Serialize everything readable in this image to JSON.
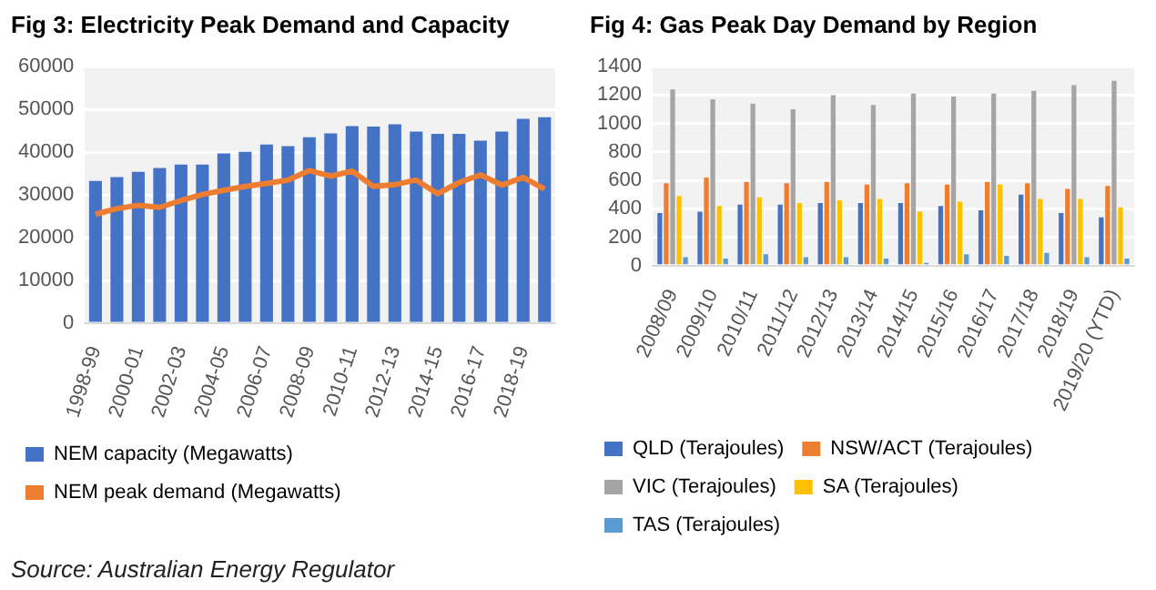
{
  "chart_data": [
    {
      "type": "bar",
      "title": "Fig 3: Electricity Peak Demand and Capacity",
      "categories": [
        "1998-99",
        null,
        "2000-01",
        null,
        "2002-03",
        null,
        "2004-05",
        null,
        "2006-07",
        null,
        "2008-09",
        null,
        "2010-11",
        null,
        "2012-13",
        null,
        "2014-15",
        null,
        "2016-17",
        null,
        "2018-19",
        null
      ],
      "series": [
        {
          "name": "NEM capacity (Megawatts)",
          "color": "#4472c4",
          "values": [
            33300,
            34200,
            35400,
            36300,
            37100,
            37100,
            39700,
            40100,
            41800,
            41400,
            43500,
            44400,
            46100,
            46000,
            46500,
            44800,
            44300,
            44300,
            42700,
            44800,
            47800,
            48200
          ]
        },
        {
          "name": "NEM peak demand (Megawatts)",
          "type": "line",
          "color": "#ed7d31",
          "values": [
            25500,
            26800,
            27600,
            27100,
            28700,
            30100,
            31100,
            32000,
            32700,
            33500,
            35700,
            34400,
            35600,
            32000,
            32400,
            33500,
            30300,
            32900,
            34700,
            32300,
            34100,
            31400
          ]
        }
      ],
      "ylim": [
        0,
        60000
      ],
      "yticks": [
        0,
        10000,
        20000,
        30000,
        40000,
        50000,
        60000
      ],
      "grid": "y",
      "legend": "bottom",
      "marker": "none",
      "annotations": [
        "Source: Australian Energy Regulator"
      ]
    },
    {
      "type": "bar",
      "title": "Fig 4: Gas Peak Day Demand by Region",
      "categories": [
        "2008/09",
        "2009/10",
        "2010/11",
        "2011/12",
        "2012/13",
        "2013/14",
        "2014/15",
        "2015/16",
        "2016/17",
        "2017/18",
        "2018/19",
        "2019/20 (YTD)"
      ],
      "series": [
        {
          "name": "QLD (Terajoules)",
          "color": "#4472c4",
          "values": [
            370,
            380,
            430,
            430,
            440,
            440,
            440,
            420,
            390,
            500,
            370,
            340
          ]
        },
        {
          "name": "NSW/ACT (Terajoules)",
          "color": "#ed7d31",
          "values": [
            580,
            620,
            590,
            580,
            590,
            570,
            580,
            570,
            590,
            580,
            540,
            560
          ]
        },
        {
          "name": "VIC (Terajoules)",
          "color": "#a5a5a5",
          "values": [
            1240,
            1170,
            1140,
            1100,
            1200,
            1130,
            1210,
            1190,
            1210,
            1230,
            1270,
            1300
          ]
        },
        {
          "name": "SA (Terajoules)",
          "color": "#ffc000",
          "values": [
            490,
            420,
            480,
            440,
            460,
            470,
            380,
            450,
            570,
            470,
            470,
            410
          ]
        },
        {
          "name": "TAS (Terajoules)",
          "color": "#5b9bd5",
          "values": [
            60,
            50,
            80,
            60,
            60,
            50,
            20,
            80,
            70,
            90,
            60,
            50
          ]
        }
      ],
      "ylim": [
        0,
        1400
      ],
      "yticks": [
        0,
        200,
        400,
        600,
        800,
        1000,
        1200,
        1400
      ],
      "grid": "y",
      "legend": "bottom"
    }
  ]
}
